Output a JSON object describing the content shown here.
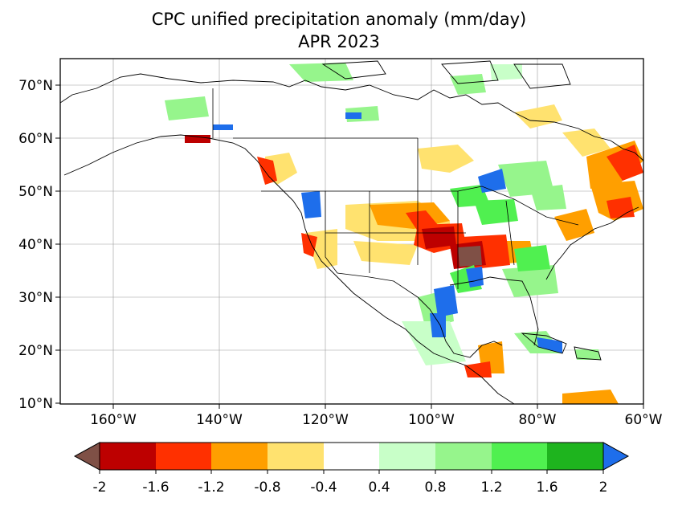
{
  "title": "CPC unified precipitation anomaly (mm/day)",
  "subtitle": "APR 2023",
  "map": {
    "region": "North America",
    "lon_range": [
      -170,
      -60
    ],
    "lat_range": [
      10,
      75
    ],
    "grid": true,
    "lat_ticks": [
      "10°N",
      "20°N",
      "30°N",
      "40°N",
      "50°N",
      "60°N",
      "70°N"
    ],
    "lon_ticks": [
      "160°W",
      "140°W",
      "120°W",
      "100°W",
      "80°W",
      "60°W"
    ]
  },
  "colorbar": {
    "tick_labels": [
      "-2",
      "-1.6",
      "-1.2",
      "-0.8",
      "-0.4",
      "0.4",
      "0.8",
      "1.2",
      "1.6",
      "2"
    ],
    "colors": [
      "#bd0000",
      "#ff3000",
      "#ff9f00",
      "#ffe26f",
      "#ffffff",
      "#c8ffc8",
      "#96f58c",
      "#50f050",
      "#1eb41e"
    ],
    "under_color": "#7f5046",
    "over_color": "#1e6eeb"
  }
}
